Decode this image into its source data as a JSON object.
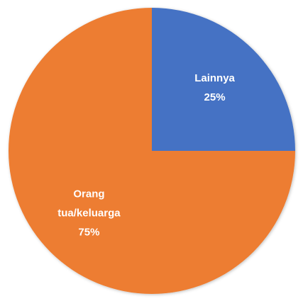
{
  "chart_data": {
    "type": "pie",
    "categories": [
      "Lainnya",
      "Orang tua/keluarga"
    ],
    "values": [
      25,
      75
    ],
    "value_labels": [
      "25%",
      "75%"
    ],
    "colors": [
      "#4472c4",
      "#ed7d31"
    ]
  }
}
